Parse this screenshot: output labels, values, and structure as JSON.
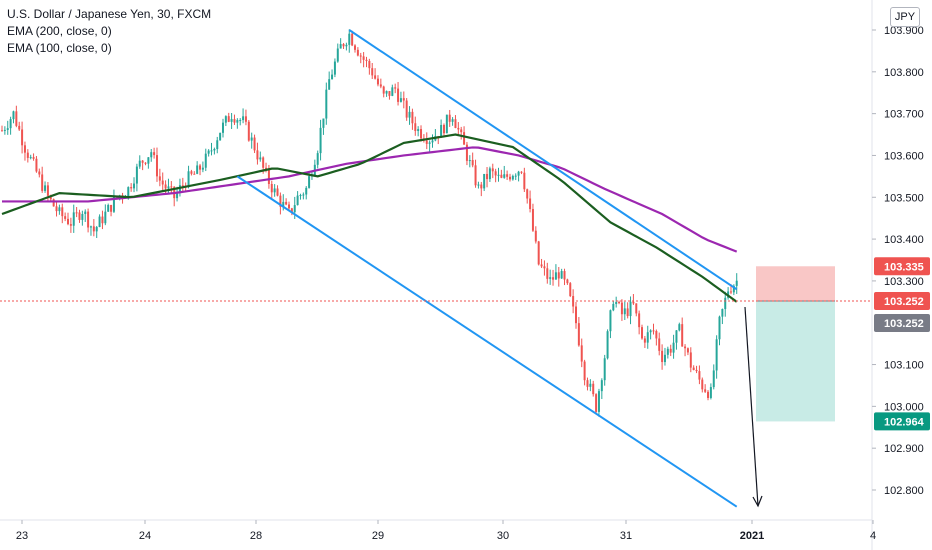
{
  "legend": {
    "title": "U.S. Dollar / Japanese Yen, 30, FXCM",
    "ema200": "EMA (200, close, 0)",
    "ema100": "EMA (100, close, 0)"
  },
  "currency": "JPY",
  "colors": {
    "up": "#26a69a",
    "down": "#ef5350",
    "ema200": "#9c27b0",
    "ema100": "#1b5e20",
    "channel": "#2196f3",
    "stop_zone": "#f9c7c6",
    "target_zone": "#c8ebe6"
  },
  "chart_data": {
    "type": "candlestick",
    "title": "U.S. Dollar / Japanese Yen, 30, FXCM",
    "x_ticks": [
      "23",
      "24",
      "28",
      "29",
      "30",
      "31",
      "2021",
      "4"
    ],
    "y_ticks": [
      "103.900",
      "103.800",
      "103.700",
      "103.600",
      "103.500",
      "103.400",
      "103.300",
      "103.100",
      "103.000",
      "102.900",
      "102.800"
    ],
    "ylim": [
      102.75,
      103.92
    ],
    "price_tags": [
      {
        "label": "103.335",
        "value": 103.335,
        "color": "#ef5350"
      },
      {
        "label": "103.252",
        "value": 103.252,
        "color": "#ef5350"
      },
      {
        "label": "103.252",
        "value": 103.252,
        "color": "#787b86"
      },
      {
        "label": "102.964",
        "value": 102.964,
        "color": "#089981"
      }
    ],
    "current_price": 103.252,
    "position": {
      "entry": 103.252,
      "stop": 103.335,
      "target": 102.964
    },
    "close_path": [
      [
        0,
        103.66
      ],
      [
        4,
        103.7
      ],
      [
        8,
        103.62
      ],
      [
        12,
        103.56
      ],
      [
        16,
        103.5
      ],
      [
        20,
        103.46
      ],
      [
        24,
        103.44
      ],
      [
        28,
        103.47
      ],
      [
        32,
        103.42
      ],
      [
        36,
        103.46
      ],
      [
        40,
        103.5
      ],
      [
        44,
        103.52
      ],
      [
        48,
        103.58
      ],
      [
        52,
        103.61
      ],
      [
        55,
        103.54
      ],
      [
        60,
        103.5
      ],
      [
        64,
        103.54
      ],
      [
        68,
        103.56
      ],
      [
        72,
        103.6
      ],
      [
        76,
        103.66
      ],
      [
        80,
        103.7
      ],
      [
        84,
        103.68
      ],
      [
        88,
        103.62
      ],
      [
        92,
        103.55
      ],
      [
        96,
        103.5
      ],
      [
        100,
        103.46
      ],
      [
        103,
        103.5
      ],
      [
        106,
        103.52
      ],
      [
        110,
        103.62
      ],
      [
        114,
        103.78
      ],
      [
        118,
        103.86
      ],
      [
        121,
        103.89
      ],
      [
        125,
        103.84
      ],
      [
        129,
        103.8
      ],
      [
        133,
        103.74
      ],
      [
        137,
        103.76
      ],
      [
        141,
        103.7
      ],
      [
        145,
        103.66
      ],
      [
        149,
        103.64
      ],
      [
        153,
        103.66
      ],
      [
        157,
        103.7
      ],
      [
        160,
        103.64
      ],
      [
        163,
        103.58
      ],
      [
        166,
        103.52
      ],
      [
        170,
        103.56
      ],
      [
        174,
        103.54
      ],
      [
        178,
        103.56
      ],
      [
        181,
        103.57
      ],
      [
        184,
        103.46
      ],
      [
        187,
        103.34
      ],
      [
        191,
        103.3
      ],
      [
        194,
        103.32
      ],
      [
        197,
        103.28
      ],
      [
        200,
        103.2
      ],
      [
        203,
        103.08
      ],
      [
        207,
        103.0
      ],
      [
        210,
        103.12
      ],
      [
        213,
        103.26
      ],
      [
        216,
        103.22
      ],
      [
        220,
        103.24
      ],
      [
        223,
        103.16
      ],
      [
        227,
        103.18
      ],
      [
        230,
        103.12
      ],
      [
        233,
        103.14
      ],
      [
        236,
        103.18
      ],
      [
        240,
        103.1
      ],
      [
        244,
        103.05
      ],
      [
        247,
        103.03
      ],
      [
        250,
        103.2
      ],
      [
        253,
        103.28
      ],
      [
        256,
        103.3
      ]
    ],
    "ema200": [
      [
        0,
        103.49
      ],
      [
        30,
        103.49
      ],
      [
        60,
        103.51
      ],
      [
        100,
        103.55
      ],
      [
        120,
        103.58
      ],
      [
        140,
        103.6
      ],
      [
        165,
        103.62
      ],
      [
        180,
        103.6
      ],
      [
        195,
        103.57
      ],
      [
        210,
        103.52
      ],
      [
        230,
        103.46
      ],
      [
        245,
        103.4
      ],
      [
        256,
        103.37
      ]
    ],
    "ema100": [
      [
        0,
        103.46
      ],
      [
        20,
        103.51
      ],
      [
        45,
        103.5
      ],
      [
        75,
        103.54
      ],
      [
        95,
        103.57
      ],
      [
        110,
        103.55
      ],
      [
        125,
        103.58
      ],
      [
        140,
        103.63
      ],
      [
        158,
        103.65
      ],
      [
        178,
        103.62
      ],
      [
        195,
        103.54
      ],
      [
        212,
        103.44
      ],
      [
        228,
        103.38
      ],
      [
        244,
        103.31
      ],
      [
        256,
        103.25
      ]
    ],
    "channel_upper": {
      "from": [
        121,
        103.9
      ],
      "to": [
        256,
        103.28
      ]
    },
    "channel_lower": {
      "from": [
        82,
        103.55
      ],
      "to": [
        256,
        102.76
      ]
    }
  }
}
